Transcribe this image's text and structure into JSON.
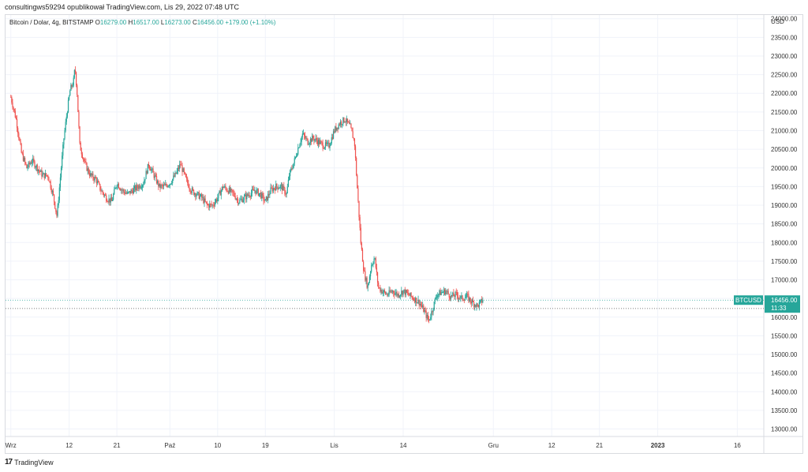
{
  "header": {
    "published_by": "consultingws59294 opublikował TradingView.com, Lis 29, 2022 07:48 UTC"
  },
  "legend": {
    "symbol": "Bitcoin / Dolar, 4g, BITSTAMP",
    "open_label": "O",
    "open": "16279.00",
    "high_label": "H",
    "high": "16517.00",
    "low_label": "L",
    "low": "16273.00",
    "close_label": "C",
    "close": "16456.00",
    "change": "+179.00 (+1.10%)"
  },
  "footer": {
    "logo_mark": "17",
    "brand": "TradingView"
  },
  "colors": {
    "up": "#26a69a",
    "down": "#ef5350",
    "grid": "#f0f3fa",
    "badge": "#26a69a"
  },
  "chart_data": {
    "type": "candlestick",
    "title": "Bitcoin / Dolar, 4g, BITSTAMP",
    "currency_label": "USD",
    "ylim": [
      12800,
      24100
    ],
    "y_ticks": [
      13000,
      13500,
      14000,
      14500,
      15000,
      15500,
      16000,
      16500,
      17000,
      17500,
      18000,
      18500,
      19000,
      19500,
      20000,
      20500,
      21000,
      21500,
      22000,
      22500,
      23000,
      23500,
      24000
    ],
    "x_ticks": [
      {
        "label": "Wrz",
        "day": 0
      },
      {
        "label": "12",
        "day": 11
      },
      {
        "label": "21",
        "day": 20
      },
      {
        "label": "Paź",
        "day": 30
      },
      {
        "label": "10",
        "day": 39
      },
      {
        "label": "19",
        "day": 48
      },
      {
        "label": "Lis",
        "day": 61
      },
      {
        "label": "14",
        "day": 74
      },
      {
        "label": "Gru",
        "day": 91
      },
      {
        "label": "12",
        "day": 102
      },
      {
        "label": "21",
        "day": 111
      },
      {
        "label": "2023",
        "day": 122
      },
      {
        "label": "16",
        "day": 137
      }
    ],
    "x_range_days": [
      -1,
      142
    ],
    "last_candle_day": 89,
    "price_badge": {
      "symbol": "BTCUSD",
      "price": "16456.00",
      "countdown": "11:33",
      "value": 16456
    },
    "dotted_level": 16230,
    "anchors": [
      [
        0,
        21900
      ],
      [
        1,
        21300
      ],
      [
        2,
        20400
      ],
      [
        3,
        20000
      ],
      [
        4,
        20200
      ],
      [
        5,
        20000
      ],
      [
        6,
        19800
      ],
      [
        7,
        19800
      ],
      [
        8,
        19250
      ],
      [
        8.7,
        18700
      ],
      [
        9.3,
        19700
      ],
      [
        10,
        20800
      ],
      [
        10.6,
        21500
      ],
      [
        11.2,
        22100
      ],
      [
        11.8,
        22300
      ],
      [
        12.1,
        22700
      ],
      [
        12.5,
        22000
      ],
      [
        13,
        20600
      ],
      [
        14,
        20100
      ],
      [
        15,
        19800
      ],
      [
        16,
        19700
      ],
      [
        17,
        19400
      ],
      [
        18,
        19200
      ],
      [
        19,
        19100
      ],
      [
        20,
        19600
      ],
      [
        21,
        19400
      ],
      [
        22,
        19300
      ],
      [
        23,
        19400
      ],
      [
        24,
        19500
      ],
      [
        25,
        19600
      ],
      [
        26,
        20100
      ],
      [
        27,
        19800
      ],
      [
        28,
        19500
      ],
      [
        29,
        19500
      ],
      [
        30,
        19600
      ],
      [
        31,
        19800
      ],
      [
        32,
        20100
      ],
      [
        33,
        19700
      ],
      [
        34,
        19400
      ],
      [
        35,
        19300
      ],
      [
        36,
        19200
      ],
      [
        37,
        19000
      ],
      [
        38,
        19000
      ],
      [
        39,
        19200
      ],
      [
        40,
        19500
      ],
      [
        41,
        19400
      ],
      [
        42,
        19300
      ],
      [
        43,
        19100
      ],
      [
        44,
        19200
      ],
      [
        45,
        19300
      ],
      [
        46,
        19400
      ],
      [
        47,
        19300
      ],
      [
        48,
        19100
      ],
      [
        49,
        19400
      ],
      [
        50,
        19500
      ],
      [
        51,
        19500
      ],
      [
        52,
        19300
      ],
      [
        52.5,
        19800
      ],
      [
        53.5,
        20200
      ],
      [
        54.3,
        20600
      ],
      [
        55,
        20900
      ],
      [
        56,
        20700
      ],
      [
        57,
        20800
      ],
      [
        58,
        20700
      ],
      [
        59,
        20600
      ],
      [
        60,
        20600
      ],
      [
        61,
        21000
      ],
      [
        62,
        21200
      ],
      [
        63,
        21300
      ],
      [
        64,
        21100
      ],
      [
        64.8,
        20700
      ],
      [
        65.4,
        19300
      ],
      [
        66,
        18000
      ],
      [
        66.6,
        17200
      ],
      [
        67.3,
        16800
      ],
      [
        68,
        17400
      ],
      [
        68.6,
        17600
      ],
      [
        69.3,
        16800
      ],
      [
        70,
        16700
      ],
      [
        71,
        16600
      ],
      [
        72,
        16700
      ],
      [
        73,
        16600
      ],
      [
        74,
        16700
      ],
      [
        75,
        16600
      ],
      [
        76,
        16500
      ],
      [
        77,
        16400
      ],
      [
        78,
        16150
      ],
      [
        78.8,
        15900
      ],
      [
        79.5,
        16200
      ],
      [
        80.3,
        16600
      ],
      [
        81,
        16650
      ],
      [
        82,
        16700
      ],
      [
        83,
        16550
      ],
      [
        84,
        16600
      ],
      [
        85,
        16500
      ],
      [
        86,
        16550
      ],
      [
        87,
        16400
      ],
      [
        88,
        16300
      ],
      [
        89,
        16456
      ]
    ]
  }
}
